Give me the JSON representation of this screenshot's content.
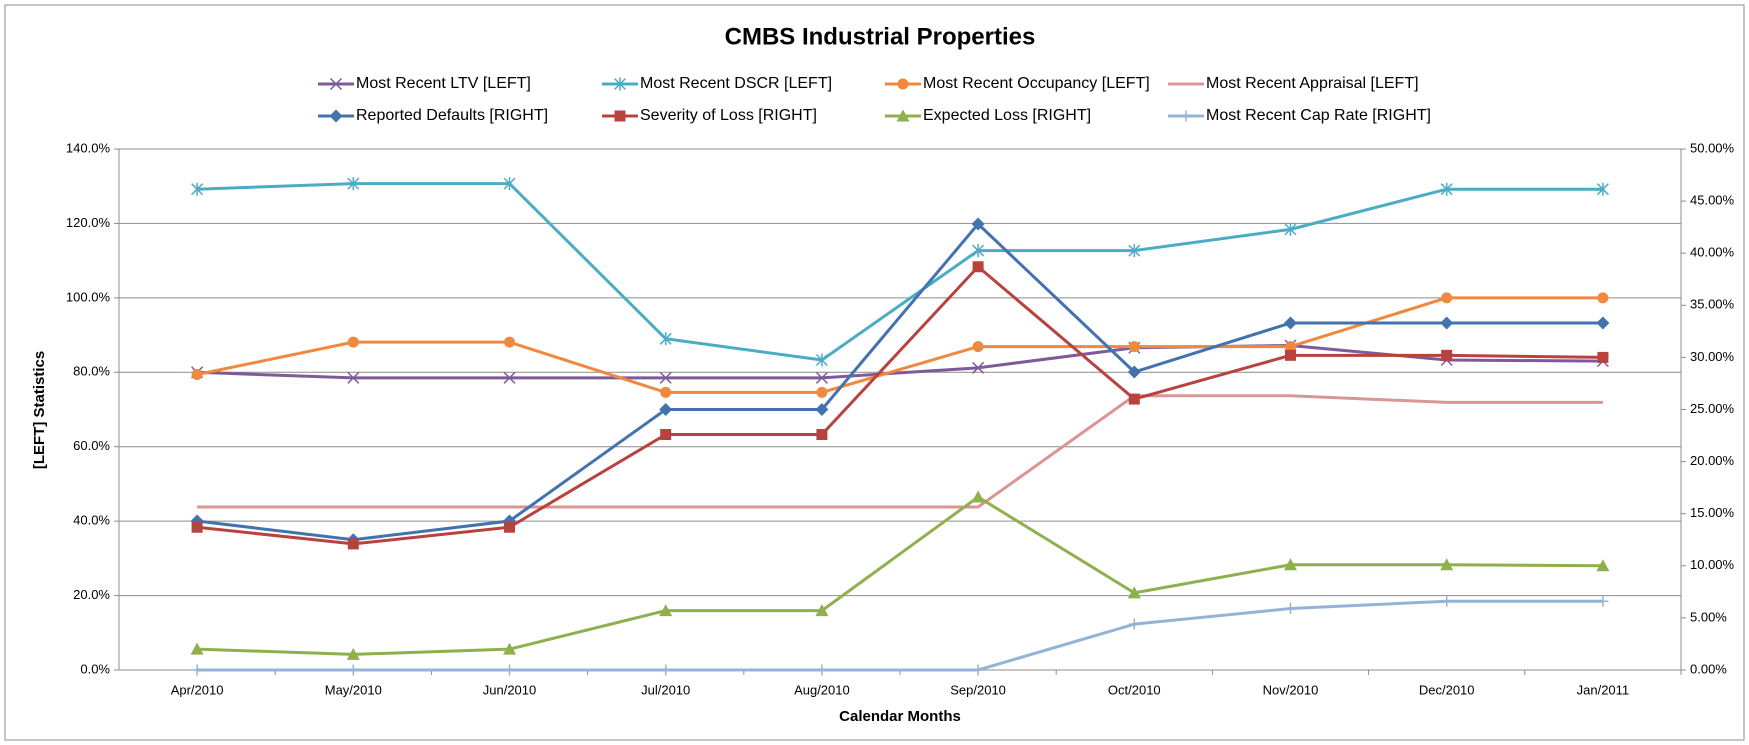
{
  "chart_data": {
    "type": "line",
    "title": "CMBS Industrial Properties",
    "x_label": "Calendar Months",
    "y_label": "[LEFT] Statistics",
    "categories": [
      "Apr/2010",
      "May/2010",
      "Jun/2010",
      "Jul/2010",
      "Aug/2010",
      "Sep/2010",
      "Oct/2010",
      "Nov/2010",
      "Dec/2010",
      "Jan/2011"
    ],
    "ylim": [
      0,
      140
    ],
    "yticks": [
      {
        "value": 0,
        "label": "0.0%"
      },
      {
        "value": 20,
        "label": "20.0%"
      },
      {
        "value": 40,
        "label": "40.0%"
      },
      {
        "value": 60,
        "label": "60.0%"
      },
      {
        "value": 80,
        "label": "80.0%"
      },
      {
        "value": 100,
        "label": "100.0%"
      },
      {
        "value": 120,
        "label": "120.0%"
      },
      {
        "value": 140,
        "label": "140.0%"
      }
    ],
    "y2lim": [
      0,
      50
    ],
    "y2ticks": [
      {
        "value": 0,
        "label": "0.00%"
      },
      {
        "value": 5,
        "label": "5.00%"
      },
      {
        "value": 10,
        "label": "10.00%"
      },
      {
        "value": 15,
        "label": "15.00%"
      },
      {
        "value": 20,
        "label": "20.00%"
      },
      {
        "value": 25,
        "label": "25.00%"
      },
      {
        "value": 30,
        "label": "30.00%"
      },
      {
        "value": 35,
        "label": "35.00%"
      },
      {
        "value": 40,
        "label": "40.00%"
      },
      {
        "value": 45,
        "label": "45.00%"
      },
      {
        "value": 50,
        "label": "50.00%"
      }
    ],
    "grid": true,
    "legend": "top",
    "series": [
      {
        "name": "Most Recent LTV [LEFT]",
        "color": "#7e5a9b",
        "marker": "x",
        "values": [
          80.0,
          78.5,
          78.5,
          78.5,
          78.5,
          81.2,
          86.6,
          87.2,
          83.3,
          83.0
        ]
      },
      {
        "name": "Most Recent DSCR [LEFT]",
        "color": "#4bacc6",
        "marker": "star",
        "values": [
          129.2,
          130.7,
          130.7,
          89.0,
          83.3,
          112.7,
          112.7,
          118.4,
          129.2,
          129.2
        ]
      },
      {
        "name": "Most Recent Occupancy [LEFT]",
        "color": "#f0883e",
        "marker": "circle",
        "values": [
          79.4,
          88.1,
          88.1,
          74.6,
          74.6,
          86.9,
          86.9,
          86.9,
          100.0,
          100.0
        ]
      },
      {
        "name": "Most Recent Appraisal [LEFT]",
        "color": "#d99694",
        "marker": "none",
        "values": [
          43.8,
          43.8,
          43.8,
          43.8,
          43.8,
          43.8,
          73.7,
          73.7,
          71.9,
          71.9
        ]
      },
      {
        "name": "Reported Defaults [RIGHT]",
        "color": "#4373ae",
        "marker": "diamond",
        "axis": "y2",
        "values": [
          14.3,
          12.5,
          14.3,
          25.0,
          25.0,
          42.8,
          28.6,
          33.3,
          33.3,
          33.3
        ]
      },
      {
        "name": "Severity of Loss [RIGHT]",
        "color": "#b8423e",
        "marker": "square",
        "axis": "y2",
        "values": [
          13.7,
          12.1,
          13.7,
          22.6,
          22.6,
          38.7,
          26.0,
          30.2,
          30.2,
          30.0
        ]
      },
      {
        "name": "Expected Loss [RIGHT]",
        "color": "#8fb04c",
        "marker": "triangle",
        "axis": "y2",
        "values": [
          2.0,
          1.5,
          2.0,
          5.7,
          5.7,
          16.6,
          7.4,
          10.1,
          10.1,
          10.0
        ]
      },
      {
        "name": "Most Recent Cap Rate [RIGHT]",
        "color": "#95b3d7",
        "marker": "plus",
        "axis": "y2",
        "values": [
          0,
          0,
          0,
          0,
          0,
          0,
          4.4,
          5.9,
          6.6,
          6.6
        ]
      }
    ]
  }
}
